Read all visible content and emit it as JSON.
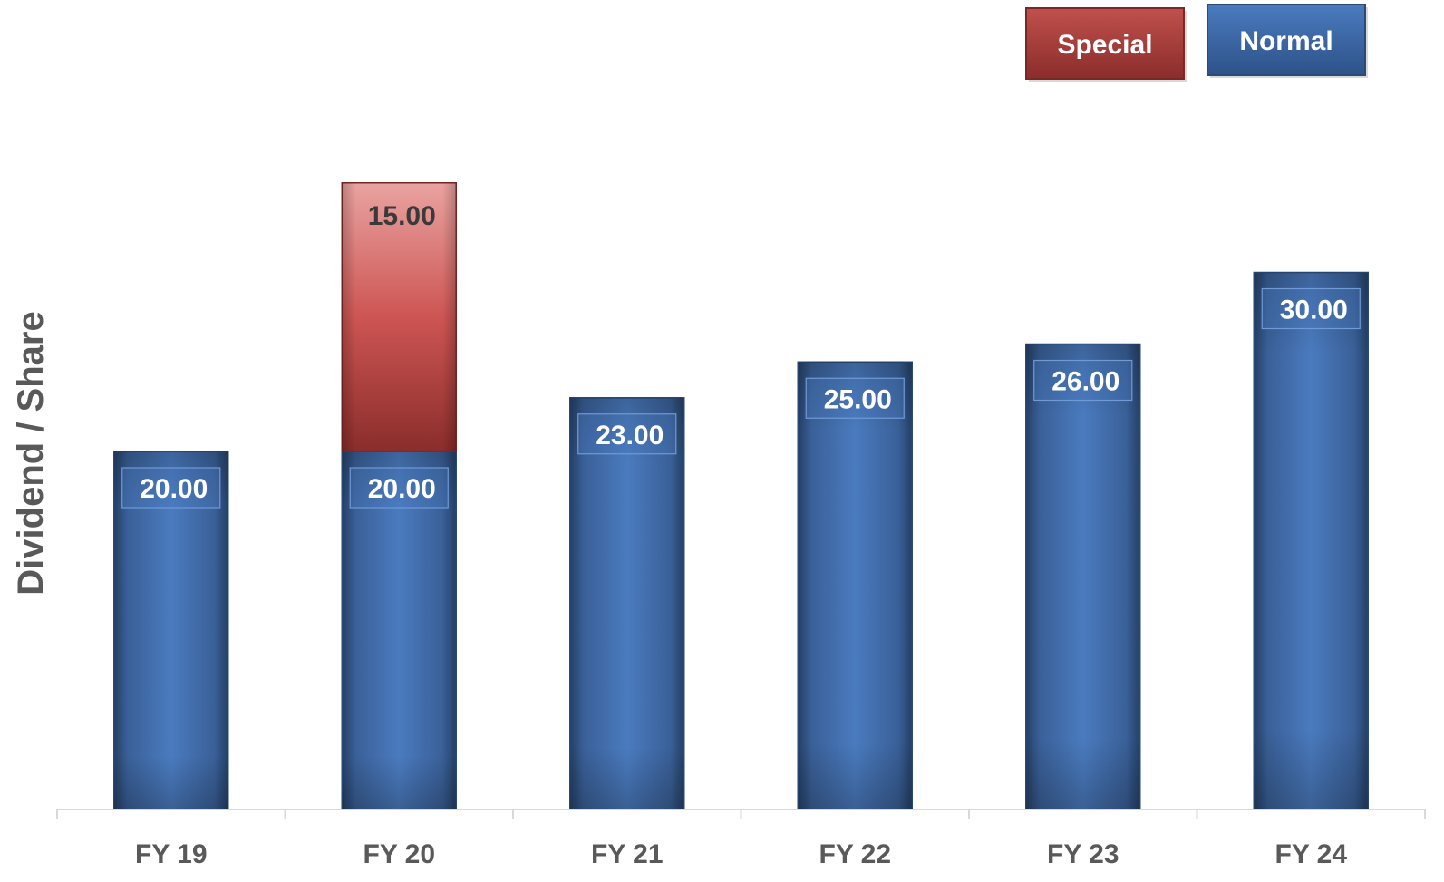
{
  "chart_data": {
    "type": "bar",
    "stacked": true,
    "categories": [
      "FY 19",
      "FY 20",
      "FY 21",
      "FY 22",
      "FY 23",
      "FY 24"
    ],
    "series": [
      {
        "name": "Normal",
        "values": [
          20,
          20,
          23,
          25,
          26,
          30
        ],
        "labels": [
          "20.00",
          "20.00",
          "23.00",
          "25.00",
          "26.00",
          "30.00"
        ],
        "color": "#4472C4"
      },
      {
        "name": "Special",
        "values": [
          null,
          15,
          null,
          null,
          null,
          null
        ],
        "labels": [
          null,
          "15.00",
          null,
          null,
          null,
          null
        ],
        "color": "#C0504D"
      }
    ],
    "title": "",
    "xlabel": "",
    "ylabel": "Dividend / Share",
    "ylim": [
      0,
      35
    ],
    "grid": false,
    "legend_position": "top-right"
  }
}
